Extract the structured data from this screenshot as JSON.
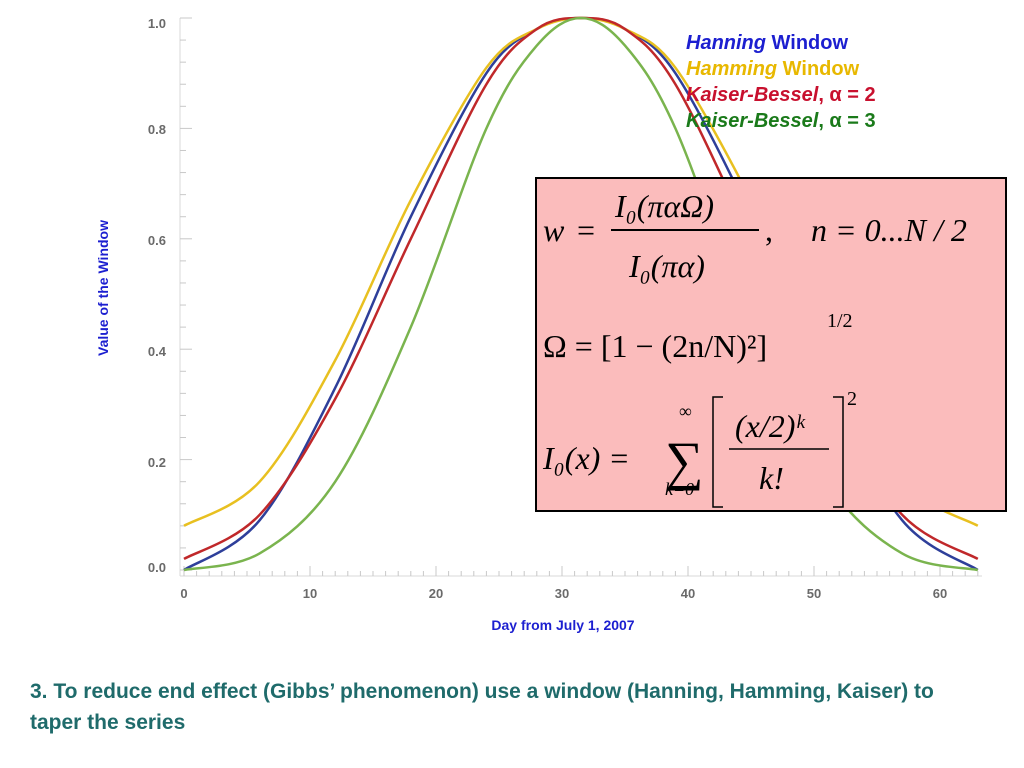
{
  "chart_data": {
    "type": "line",
    "xlabel": "Day from July 1, 2007",
    "ylabel": "Value of the Window",
    "xlim": [
      0,
      63
    ],
    "ylim": [
      0,
      1.0
    ],
    "xticks": [
      "0",
      "10",
      "20",
      "30",
      "40",
      "50",
      "60"
    ],
    "yticks": [
      "0.0",
      "0.2",
      "0.4",
      "0.6",
      "0.8",
      "1.0"
    ],
    "grid": false,
    "legend_position": "top-right",
    "series": [
      {
        "name_italic": "Hanning",
        "name_rest": " Window",
        "color": "#2e3f9a",
        "x": [
          0,
          6,
          12,
          18,
          24,
          28,
          31.5,
          35,
          39,
          45,
          51,
          57,
          63
        ],
        "y": [
          0.0,
          0.09,
          0.33,
          0.64,
          0.9,
          0.98,
          1.0,
          0.98,
          0.9,
          0.64,
          0.33,
          0.09,
          0.0
        ]
      },
      {
        "name_italic": "Hamming",
        "name_rest": " Window",
        "color": "#e8c020",
        "x": [
          0,
          6,
          12,
          18,
          24,
          28,
          31.5,
          35,
          39,
          45,
          51,
          57,
          63
        ],
        "y": [
          0.08,
          0.16,
          0.38,
          0.67,
          0.91,
          0.98,
          1.0,
          0.98,
          0.91,
          0.67,
          0.38,
          0.16,
          0.08
        ]
      },
      {
        "name_italic": "Kaiser-Bessel",
        "name_rest": ", α = 2",
        "color": "#c0282a",
        "x": [
          0,
          6,
          12,
          18,
          24,
          28,
          31.5,
          35,
          39,
          45,
          51,
          57,
          63
        ],
        "y": [
          0.02,
          0.1,
          0.31,
          0.6,
          0.88,
          0.98,
          1.0,
          0.98,
          0.88,
          0.6,
          0.31,
          0.1,
          0.02
        ]
      },
      {
        "name_italic": "Kaiser-Bessel",
        "name_rest": ", α = 3",
        "color": "#7ab44e",
        "x": [
          0,
          6,
          12,
          18,
          24,
          28,
          31.5,
          35,
          39,
          45,
          51,
          57,
          63
        ],
        "y": [
          0.0,
          0.03,
          0.16,
          0.44,
          0.8,
          0.95,
          1.0,
          0.95,
          0.8,
          0.44,
          0.16,
          0.03,
          0.0
        ]
      }
    ]
  },
  "legend_colors": [
    "#1c1fd0",
    "#e8b800",
    "#c8102e",
    "#1a7a1a"
  ],
  "formula_box": {
    "bg_color": "#fbbcbc",
    "eq1": {
      "w": "w",
      "eq": "=",
      "num": "I₀(παΩ)",
      "den": "I₀(πα)",
      "comma": ",",
      "range": "n = 0...N / 2"
    },
    "eq2": {
      "text": "Ω = [1 − (2n/N)²]",
      "exp": "1/2"
    },
    "eq3": {
      "lhs": "I₀(x) =",
      "sum": "∑",
      "sum_top": "∞",
      "sum_bottom": "k=0",
      "num": "(x/2)ᵏ",
      "den": "k!",
      "exp": "2"
    }
  },
  "caption": "3. To reduce end effect (Gibbs’ phenomenon) use a window (Hanning, Hamming, Kaiser) to taper the series",
  "caption_color": "#1f6b6b"
}
